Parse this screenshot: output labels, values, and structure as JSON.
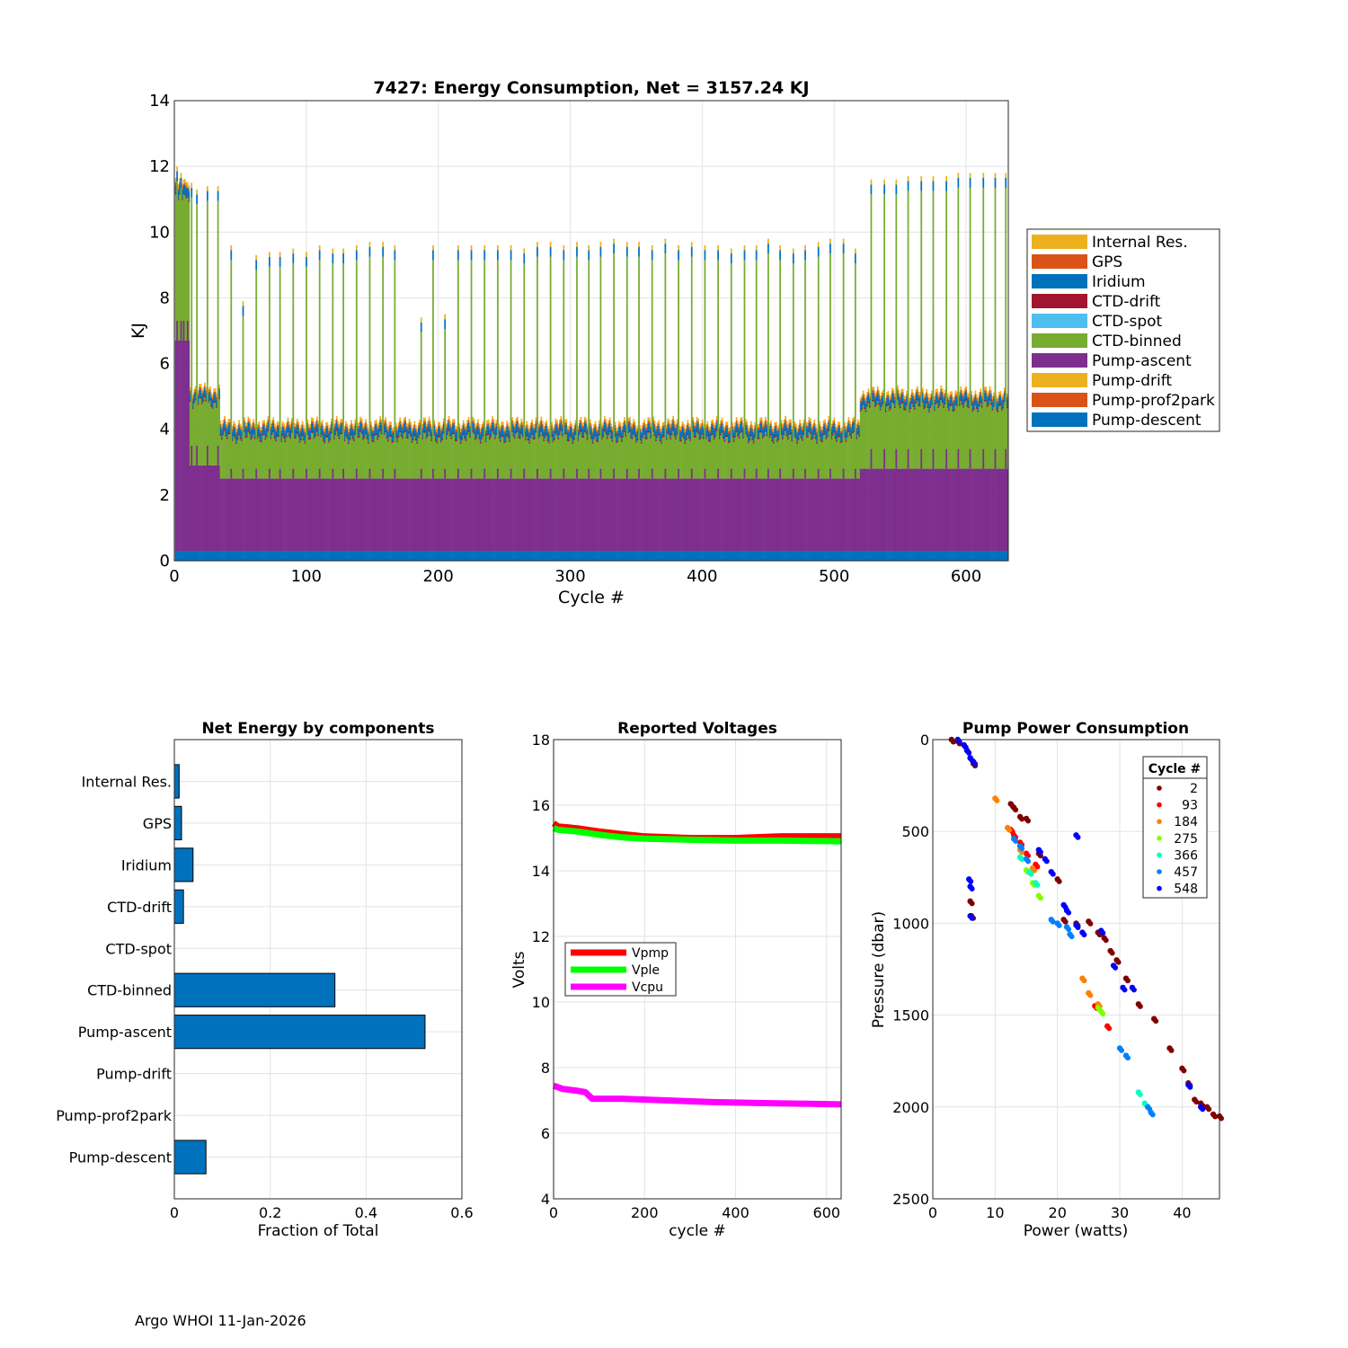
{
  "footer": "Argo WHOI 11-Jan-2026",
  "colors": {
    "internal_res": "#EDB120",
    "gps": "#D95319",
    "iridium": "#0072BD",
    "ctd_drift": "#A2142F",
    "ctd_spot": "#4DBEEE",
    "ctd_binned": "#77AC30",
    "pump_ascent": "#7E2F8E",
    "pump_drift": "#EDB120",
    "pump_prof2park": "#D95319",
    "pump_descent": "#0072BD",
    "vpmp": "#FF0000",
    "vple": "#00FF00",
    "vcpu": "#FF00FF",
    "bar_fill": "#0072BD",
    "grid": "#e3e3e3"
  },
  "chart_data": [
    {
      "type": "bar",
      "stacked": true,
      "title": "7427: Energy Consumption,  Net = 3157.24 KJ",
      "xlabel": "Cycle #",
      "ylabel": "KJ",
      "xlim": [
        0,
        632
      ],
      "ylim": [
        0,
        14
      ],
      "xticks": [
        "0",
        "100",
        "200",
        "300",
        "400",
        "500",
        "600"
      ],
      "yticks": [
        "0",
        "2",
        "4",
        "6",
        "8",
        "10",
        "12",
        "14"
      ],
      "legend_position": "right",
      "legend": [
        "Internal Res.",
        "GPS",
        "Iridium",
        "CTD-drift",
        "CTD-spot",
        "CTD-binned",
        "Pump-ascent",
        "Pump-drift",
        "Pump-prof2park",
        "Pump-descent"
      ],
      "segments": [
        {
          "x0": 0,
          "x1": 12,
          "descent": 0.3,
          "ascent": 6.4,
          "binned": 4.3,
          "iridium": 0.25,
          "gps": 0.08,
          "ctd_drift": 0.05,
          "internal": 0.12
        },
        {
          "x0": 12,
          "x1": 35,
          "descent": 0.3,
          "ascent": 2.6,
          "binned": 1.9,
          "iridium": 0.22,
          "gps": 0.07,
          "ctd_drift": 0.05,
          "internal": 0.1
        },
        {
          "x0": 35,
          "x1": 520,
          "descent": 0.3,
          "ascent": 2.2,
          "binned": 1.25,
          "iridium": 0.24,
          "gps": 0.07,
          "ctd_drift": 0.05,
          "internal": 0.1
        },
        {
          "x0": 520,
          "x1": 632,
          "descent": 0.3,
          "ascent": 2.5,
          "binned": 1.9,
          "iridium": 0.22,
          "gps": 0.07,
          "ctd_drift": 0.05,
          "internal": 0.1
        }
      ],
      "spikes": [
        {
          "x": 2,
          "total": 12.0
        },
        {
          "x": 5,
          "total": 11.8
        },
        {
          "x": 7,
          "total": 11.6
        },
        {
          "x": 10,
          "total": 11.5
        },
        {
          "x": 13,
          "total": 11.5
        },
        {
          "x": 17,
          "total": 11.3
        },
        {
          "x": 25,
          "total": 11.4
        },
        {
          "x": 33,
          "total": 11.4
        },
        {
          "x": 43,
          "total": 9.6
        },
        {
          "x": 52,
          "total": 7.9
        },
        {
          "x": 62,
          "total": 9.3
        },
        {
          "x": 72,
          "total": 9.4
        },
        {
          "x": 80,
          "total": 9.4
        },
        {
          "x": 90,
          "total": 9.5
        },
        {
          "x": 100,
          "total": 9.4
        },
        {
          "x": 110,
          "total": 9.6
        },
        {
          "x": 120,
          "total": 9.5
        },
        {
          "x": 128,
          "total": 9.5
        },
        {
          "x": 138,
          "total": 9.6
        },
        {
          "x": 148,
          "total": 9.7
        },
        {
          "x": 158,
          "total": 9.7
        },
        {
          "x": 167,
          "total": 9.6
        },
        {
          "x": 187,
          "total": 7.4
        },
        {
          "x": 196,
          "total": 9.6
        },
        {
          "x": 205,
          "total": 7.5
        },
        {
          "x": 215,
          "total": 9.6
        },
        {
          "x": 225,
          "total": 9.6
        },
        {
          "x": 235,
          "total": 9.6
        },
        {
          "x": 245,
          "total": 9.6
        },
        {
          "x": 255,
          "total": 9.6
        },
        {
          "x": 265,
          "total": 9.5
        },
        {
          "x": 275,
          "total": 9.7
        },
        {
          "x": 285,
          "total": 9.7
        },
        {
          "x": 295,
          "total": 9.6
        },
        {
          "x": 305,
          "total": 9.7
        },
        {
          "x": 314,
          "total": 9.6
        },
        {
          "x": 323,
          "total": 9.7
        },
        {
          "x": 333,
          "total": 9.8
        },
        {
          "x": 343,
          "total": 9.7
        },
        {
          "x": 352,
          "total": 9.7
        },
        {
          "x": 362,
          "total": 9.6
        },
        {
          "x": 372,
          "total": 9.8
        },
        {
          "x": 382,
          "total": 9.6
        },
        {
          "x": 392,
          "total": 9.7
        },
        {
          "x": 402,
          "total": 9.6
        },
        {
          "x": 412,
          "total": 9.6
        },
        {
          "x": 422,
          "total": 9.5
        },
        {
          "x": 432,
          "total": 9.6
        },
        {
          "x": 441,
          "total": 9.6
        },
        {
          "x": 450,
          "total": 9.8
        },
        {
          "x": 459,
          "total": 9.6
        },
        {
          "x": 469,
          "total": 9.5
        },
        {
          "x": 478,
          "total": 9.6
        },
        {
          "x": 488,
          "total": 9.7
        },
        {
          "x": 497,
          "total": 9.8
        },
        {
          "x": 507,
          "total": 9.8
        },
        {
          "x": 516,
          "total": 9.5
        },
        {
          "x": 528,
          "total": 11.6
        },
        {
          "x": 538,
          "total": 11.6
        },
        {
          "x": 547,
          "total": 11.6
        },
        {
          "x": 556,
          "total": 11.7
        },
        {
          "x": 566,
          "total": 11.7
        },
        {
          "x": 575,
          "total": 11.7
        },
        {
          "x": 585,
          "total": 11.7
        },
        {
          "x": 594,
          "total": 11.8
        },
        {
          "x": 603,
          "total": 11.8
        },
        {
          "x": 613,
          "total": 11.8
        },
        {
          "x": 622,
          "total": 11.8
        },
        {
          "x": 630,
          "total": 11.8
        }
      ]
    },
    {
      "type": "bar",
      "orientation": "horizontal",
      "title": "Net Energy by components",
      "xlabel": "Fraction of Total",
      "xlim": [
        0,
        0.6
      ],
      "xticks": [
        "0",
        "0.2",
        "0.4",
        "0.6"
      ],
      "categories": [
        "Internal Res.",
        "GPS",
        "Iridium",
        "CTD-drift",
        "CTD-spot",
        "CTD-binned",
        "Pump-ascent",
        "Pump-drift",
        "Pump-prof2park",
        "Pump-descent"
      ],
      "values": [
        0.01,
        0.015,
        0.039,
        0.019,
        0.0,
        0.335,
        0.523,
        0.0,
        0.0,
        0.066
      ]
    },
    {
      "type": "line",
      "title": "Reported Voltages",
      "xlabel": "cycle #",
      "ylabel": "Volts",
      "xlim": [
        0,
        632
      ],
      "ylim": [
        4,
        18
      ],
      "xticks": [
        "0",
        "200",
        "400",
        "600"
      ],
      "yticks": [
        "4",
        "6",
        "8",
        "10",
        "12",
        "14",
        "16",
        "18"
      ],
      "legend_position": "center-left",
      "series": [
        {
          "name": "Vpmp",
          "points": [
            [
              0,
              15.45
            ],
            [
              10,
              15.35
            ],
            [
              50,
              15.3
            ],
            [
              100,
              15.2
            ],
            [
              150,
              15.12
            ],
            [
              200,
              15.05
            ],
            [
              300,
              15.0
            ],
            [
              400,
              15.0
            ],
            [
              500,
              15.05
            ],
            [
              632,
              15.05
            ]
          ]
        },
        {
          "name": "Vple",
          "points": [
            [
              0,
              15.3
            ],
            [
              10,
              15.25
            ],
            [
              50,
              15.2
            ],
            [
              100,
              15.1
            ],
            [
              150,
              15.02
            ],
            [
              200,
              14.98
            ],
            [
              300,
              14.95
            ],
            [
              400,
              14.92
            ],
            [
              500,
              14.92
            ],
            [
              632,
              14.9
            ]
          ]
        },
        {
          "name": "Vcpu",
          "points": [
            [
              0,
              7.45
            ],
            [
              20,
              7.35
            ],
            [
              50,
              7.3
            ],
            [
              70,
              7.25
            ],
            [
              85,
              7.05
            ],
            [
              150,
              7.05
            ],
            [
              250,
              7.0
            ],
            [
              350,
              6.95
            ],
            [
              450,
              6.92
            ],
            [
              550,
              6.9
            ],
            [
              632,
              6.88
            ]
          ]
        }
      ]
    },
    {
      "type": "scatter",
      "title": "Pump Power Consumption",
      "xlabel": "Power (watts)",
      "ylabel": "Pressure (dbar)",
      "xlim": [
        0,
        46
      ],
      "ylim": [
        2500,
        0
      ],
      "xticks": [
        "0",
        "10",
        "20",
        "30",
        "40"
      ],
      "yticks": [
        "0",
        "500",
        "1000",
        "1500",
        "2000",
        "2500"
      ],
      "legend_title": "Cycle #",
      "legend_position": "top-right",
      "series": [
        {
          "name": "2",
          "color": "#7F0000",
          "points": [
            [
              3,
              0
            ],
            [
              4,
              10
            ],
            [
              5,
              30
            ],
            [
              5.5,
              60
            ],
            [
              6,
              100
            ],
            [
              6.5,
              130
            ],
            [
              12.5,
              350
            ],
            [
              13,
              370
            ],
            [
              14,
              420
            ],
            [
              15,
              430
            ],
            [
              17,
              620
            ],
            [
              20,
              760
            ],
            [
              21,
              980
            ],
            [
              23,
              1000
            ],
            [
              25,
              990
            ],
            [
              26.5,
              1050
            ],
            [
              27.5,
              1080
            ],
            [
              28.5,
              1150
            ],
            [
              29.5,
              1200
            ],
            [
              31,
              1300
            ],
            [
              33,
              1440
            ],
            [
              35.5,
              1520
            ],
            [
              38,
              1680
            ],
            [
              40,
              1790
            ],
            [
              41,
              1870
            ],
            [
              42,
              1960
            ],
            [
              43,
              1980
            ],
            [
              44,
              2000
            ],
            [
              45,
              2040
            ],
            [
              46,
              2050
            ],
            [
              6,
              880
            ],
            [
              6.2,
              960
            ]
          ]
        },
        {
          "name": "93",
          "color": "#FF0000",
          "points": [
            [
              12.5,
              490
            ],
            [
              13,
              520
            ],
            [
              14,
              560
            ],
            [
              15,
              620
            ],
            [
              16.5,
              680
            ],
            [
              26,
              1450
            ],
            [
              28,
              1560
            ]
          ]
        },
        {
          "name": "184",
          "color": "#FF8000",
          "points": [
            [
              10,
              320
            ],
            [
              12,
              480
            ],
            [
              14,
              600
            ],
            [
              16,
              700
            ],
            [
              24,
              1300
            ],
            [
              25,
              1380
            ],
            [
              26.5,
              1440
            ]
          ]
        },
        {
          "name": "275",
          "color": "#80FF00",
          "points": [
            [
              15,
              710
            ],
            [
              16,
              780
            ],
            [
              17,
              850
            ],
            [
              26.5,
              1460
            ],
            [
              27,
              1480
            ]
          ]
        },
        {
          "name": "366",
          "color": "#00FFC0",
          "points": [
            [
              14,
              640
            ],
            [
              15.5,
              720
            ],
            [
              16.5,
              780
            ],
            [
              33,
              1920
            ],
            [
              34,
              1980
            ]
          ]
        },
        {
          "name": "457",
          "color": "#0080FF",
          "points": [
            [
              13,
              540
            ],
            [
              14,
              580
            ],
            [
              15,
              650
            ],
            [
              19,
              980
            ],
            [
              20,
              1000
            ],
            [
              21.5,
              1020
            ],
            [
              22,
              1060
            ],
            [
              30,
              1680
            ],
            [
              31,
              1720
            ],
            [
              34.5,
              2000
            ],
            [
              35,
              2030
            ]
          ]
        },
        {
          "name": "548",
          "color": "#0000FF",
          "points": [
            [
              4,
              0
            ],
            [
              5,
              30
            ],
            [
              5.5,
              60
            ],
            [
              6,
              100
            ],
            [
              6.5,
              120
            ],
            [
              5.8,
              760
            ],
            [
              6,
              800
            ],
            [
              6,
              960
            ],
            [
              17,
              600
            ],
            [
              18,
              650
            ],
            [
              19,
              720
            ],
            [
              21,
              900
            ],
            [
              21.5,
              930
            ],
            [
              23,
              1010
            ],
            [
              24,
              1050
            ],
            [
              27,
              1040
            ],
            [
              29,
              1230
            ],
            [
              30.5,
              1350
            ],
            [
              32,
              1350
            ],
            [
              23,
              520
            ],
            [
              41,
              1880
            ],
            [
              43,
              2000
            ]
          ]
        }
      ]
    }
  ]
}
